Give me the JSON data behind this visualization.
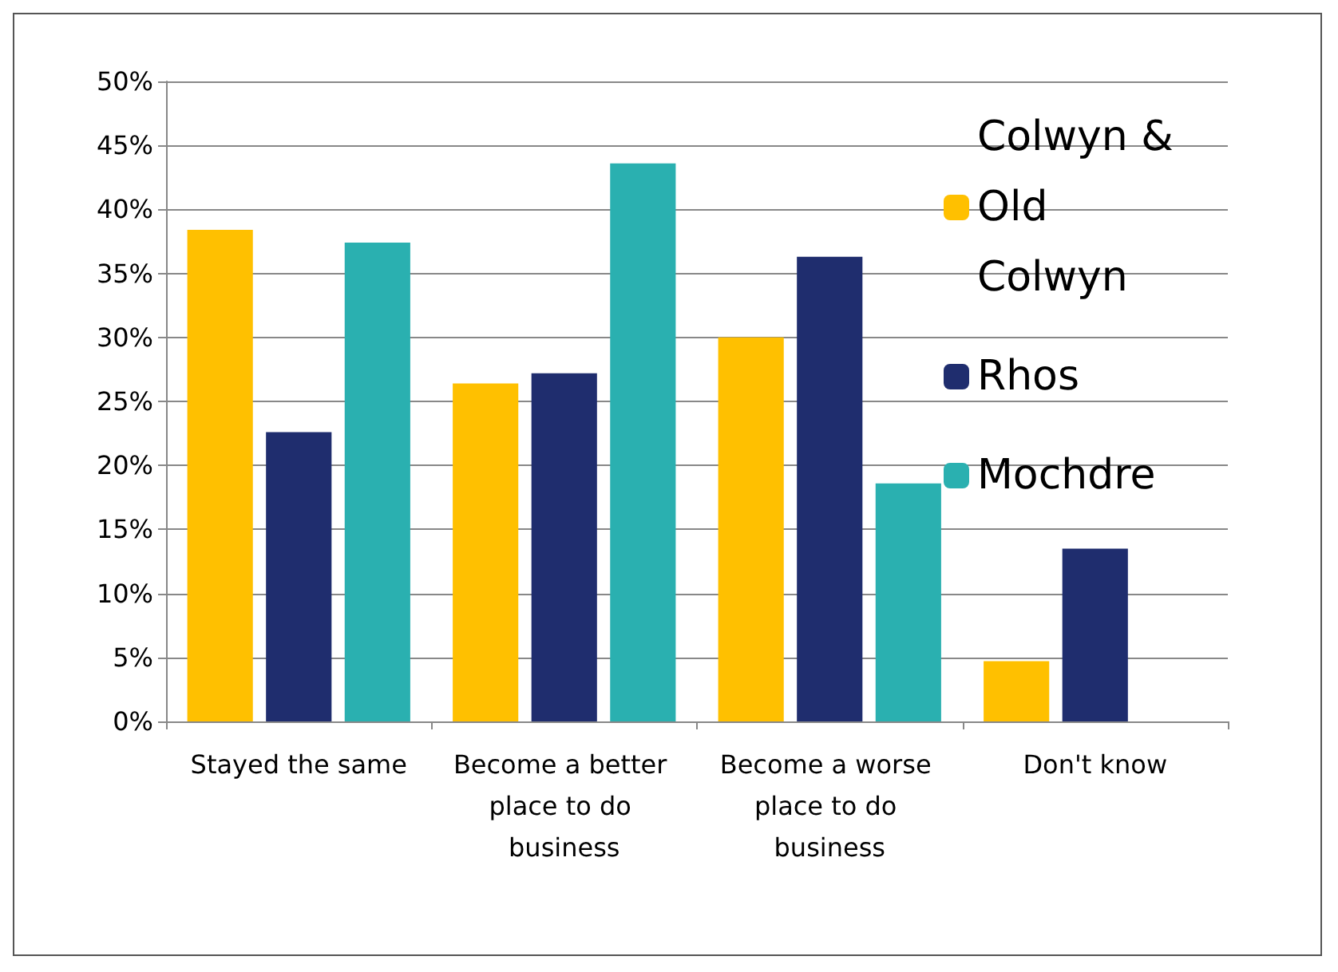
{
  "chart_data": {
    "type": "bar",
    "categories": [
      "Stayed the same",
      "Become a better place to do business",
      "Become a worse place to do business",
      "Don't know"
    ],
    "series": [
      {
        "name": "Colwyn & Old Colwyn",
        "color": "#ffc000",
        "values": [
          38.4,
          26.4,
          30.0,
          4.7
        ]
      },
      {
        "name": "Rhos",
        "color": "#1f2d6e",
        "values": [
          22.6,
          27.2,
          36.3,
          13.5
        ]
      },
      {
        "name": "Mochdre",
        "color": "#2ab0b0",
        "values": [
          37.4,
          43.6,
          18.6,
          null
        ]
      }
    ],
    "ylim": [
      0,
      50
    ],
    "yticks": [
      {
        "value": 0,
        "label": "0%"
      },
      {
        "value": 5,
        "label": "5%"
      },
      {
        "value": 10,
        "label": "10%"
      },
      {
        "value": 15,
        "label": "15%"
      },
      {
        "value": 20,
        "label": "20%"
      },
      {
        "value": 25,
        "label": "25%"
      },
      {
        "value": 30,
        "label": "30%"
      },
      {
        "value": 35,
        "label": "35%"
      },
      {
        "value": 40,
        "label": "40%"
      },
      {
        "value": 45,
        "label": "45%"
      },
      {
        "value": 50,
        "label": "50%"
      }
    ],
    "grid": "y",
    "legend": "top right"
  }
}
